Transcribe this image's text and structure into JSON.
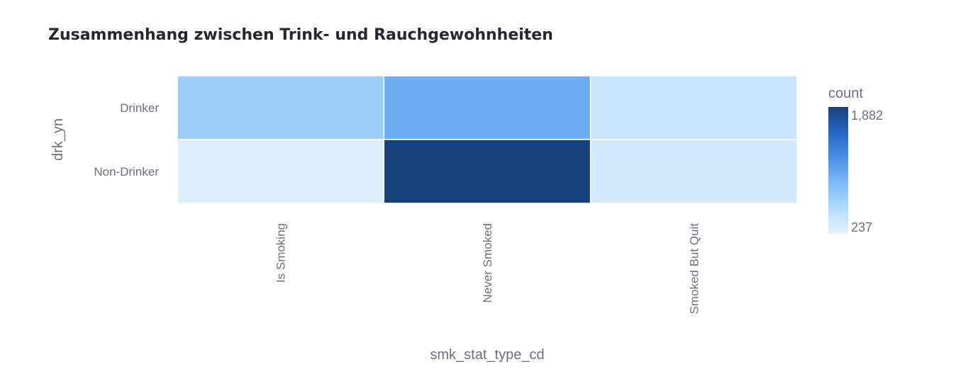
{
  "chart_data": {
    "type": "heatmap",
    "title": "Zusammenhang zwischen Trink- und Rauchgewohnheiten",
    "xlabel": "smk_stat_type_cd",
    "ylabel": "drk_yn",
    "x": [
      "Is Smoking",
      "Never Smoked",
      "Smoked But Quit"
    ],
    "y": [
      "Drinker",
      "Non-Drinker"
    ],
    "z": [
      [
        700,
        1000,
        420
      ],
      [
        300,
        1882,
        360
      ]
    ],
    "colorbar": {
      "title": "count",
      "min": 237,
      "max": 1882,
      "tick_labels": [
        "1,882",
        "237"
      ],
      "colorscale": [
        "#e6f3fd",
        "#b3dcfb",
        "#7dbaf7",
        "#4a90e8",
        "#2766c4",
        "#174079"
      ]
    },
    "grid": false
  }
}
